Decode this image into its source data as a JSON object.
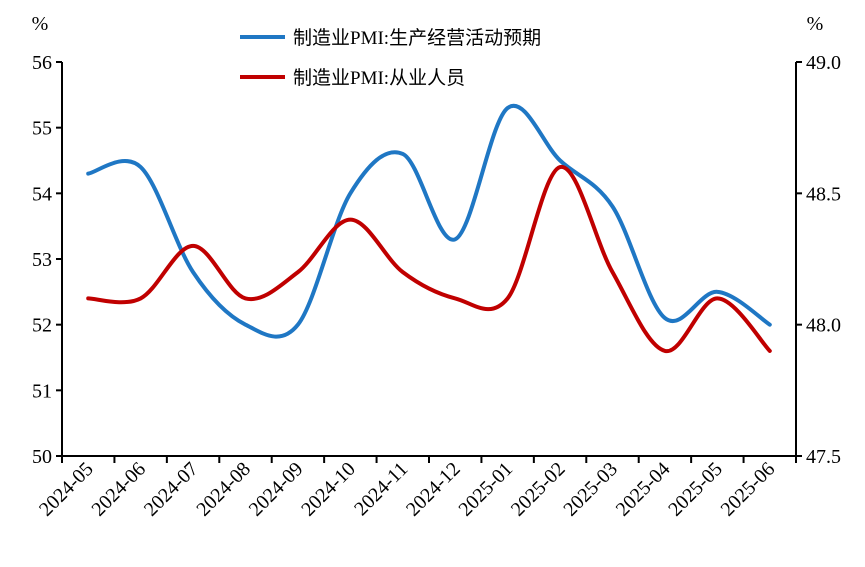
{
  "chart_data": {
    "type": "line",
    "title": "",
    "x": [
      "2024-05",
      "2024-06",
      "2024-07",
      "2024-08",
      "2024-09",
      "2024-10",
      "2024-11",
      "2024-12",
      "2025-01",
      "2025-02",
      "2025-03",
      "2025-04",
      "2025-05",
      "2025-06"
    ],
    "y_left": {
      "unit": "%",
      "ylim": [
        50,
        56
      ],
      "ticks": [
        "50",
        "51",
        "52",
        "53",
        "54",
        "55",
        "56"
      ]
    },
    "y_right": {
      "unit": "%",
      "ylim": [
        47.5,
        49.0
      ],
      "ticks": [
        "47.5",
        "48.0",
        "48.5",
        "49.0"
      ]
    },
    "series": [
      {
        "name": "制造业PMI:生产经营活动预期",
        "axis": "left",
        "color": "#1F77C4",
        "values": [
          54.3,
          54.4,
          52.8,
          52.0,
          52.0,
          54.0,
          54.6,
          53.3,
          55.3,
          54.5,
          53.8,
          52.1,
          52.5,
          52.0
        ]
      },
      {
        "name": "制造业PMI:从业人员",
        "axis": "right",
        "color": "#C00000",
        "values": [
          48.1,
          48.1,
          48.3,
          48.1,
          48.2,
          48.4,
          48.2,
          48.1,
          48.1,
          48.6,
          48.2,
          47.9,
          48.1,
          47.9
        ]
      }
    ],
    "legend_position": "top-center",
    "grid": false
  }
}
